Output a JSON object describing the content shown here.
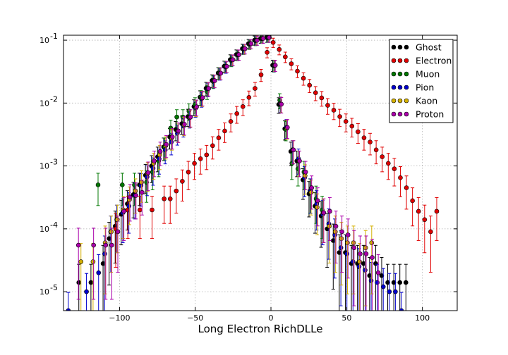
{
  "chart_data": {
    "type": "scatter",
    "title": "",
    "xlabel": "Long Electron RichDLLe",
    "ylabel": "",
    "xlim": [
      -137,
      123
    ],
    "ylim": [
      5e-06,
      0.12
    ],
    "yscale": "log",
    "grid": true,
    "legend_position": "top-right",
    "x_ticks": [
      -100,
      -50,
      0,
      50,
      100
    ],
    "x_tick_labels": [
      "−100",
      "−50",
      "0",
      "50",
      "100"
    ],
    "y_ticks": [
      1e-05,
      0.0001,
      0.001,
      0.01,
      0.1
    ],
    "y_tick_labels": [
      {
        "base": "10",
        "exp": "-5"
      },
      {
        "base": "10",
        "exp": "-4"
      },
      {
        "base": "10",
        "exp": "-3"
      },
      {
        "base": "10",
        "exp": "-2"
      },
      {
        "base": "10",
        "exp": "-1"
      }
    ],
    "series": [
      {
        "name": "Ghost",
        "color": "#000000",
        "x": [
          -126,
          -118,
          -110,
          -106,
          -102,
          -98,
          -94,
          -90,
          -86,
          -82,
          -78,
          -74,
          -70,
          -66,
          -62,
          -58,
          -54,
          -50,
          -46,
          -42,
          -38,
          -34,
          -30,
          -26,
          -22,
          -18,
          -14,
          -10,
          -6,
          -2,
          2,
          6,
          10,
          14,
          18,
          22,
          26,
          30,
          34,
          38,
          42,
          46,
          50,
          54,
          58,
          62,
          66,
          70,
          74,
          78,
          82,
          86,
          90
        ],
        "y": [
          1.4e-05,
          1.4e-05,
          2.8e-05,
          7e-05,
          0.00011,
          0.00017,
          0.00025,
          0.00035,
          0.0005,
          0.00071,
          0.001,
          0.0014,
          0.002,
          0.0029,
          0.0038,
          0.0047,
          0.0061,
          0.0088,
          0.0124,
          0.0172,
          0.0229,
          0.0301,
          0.0385,
          0.0491,
          0.0591,
          0.0735,
          0.0881,
          0.1,
          0.107,
          0.1105,
          0.04,
          0.0095,
          0.0039,
          0.0017,
          0.0012,
          0.0006,
          0.00036,
          0.00023,
          0.00016,
          0.0001,
          6.5e-05,
          4.2e-05,
          4.2e-05,
          2.8e-05,
          2.8e-05,
          2.8e-05,
          1.8e-05,
          2.8e-05,
          1.8e-05,
          1.4e-05,
          1.4e-05,
          1.4e-05,
          1.4e-05
        ]
      },
      {
        "name": "Electron",
        "color": "#e00000",
        "x": [
          -102,
          -94,
          -86,
          -78,
          -70,
          -66,
          -62,
          -58,
          -54,
          -50,
          -46,
          -42,
          -38,
          -34,
          -30,
          -26,
          -22,
          -18,
          -14,
          -10,
          -6,
          -2,
          2,
          6,
          10,
          14,
          18,
          22,
          26,
          30,
          34,
          38,
          42,
          46,
          50,
          54,
          58,
          62,
          66,
          70,
          74,
          78,
          82,
          86,
          90,
          94,
          98,
          102,
          106,
          110
        ],
        "y": [
          0.0001,
          0.0002,
          0.0002,
          0.0002,
          0.0003,
          0.0003,
          0.0004,
          0.00057,
          0.0008,
          0.0011,
          0.0013,
          0.0015,
          0.0021,
          0.0028,
          0.0036,
          0.0051,
          0.0068,
          0.0088,
          0.0123,
          0.0171,
          0.0282,
          0.0641,
          0.0921,
          0.0712,
          0.0543,
          0.0422,
          0.0322,
          0.0248,
          0.0192,
          0.0146,
          0.0121,
          0.0092,
          0.0077,
          0.0061,
          0.0051,
          0.0043,
          0.0035,
          0.0028,
          0.0024,
          0.0018,
          0.0014,
          0.0011,
          0.0009,
          0.00065,
          0.00045,
          0.00028,
          0.00019,
          0.00014,
          9e-05,
          0.00019
        ]
      },
      {
        "name": "Muon",
        "color": "#007700",
        "x": [
          -114,
          -98,
          -90,
          -82,
          -78,
          -74,
          -70,
          -66,
          -62,
          -58,
          -54,
          -50,
          -46,
          -42,
          -38,
          -34,
          -30,
          -26,
          -22,
          -18,
          -14,
          -10,
          -6,
          -2,
          2,
          6,
          10,
          14,
          18,
          22,
          26,
          30,
          34
        ],
        "y": [
          0.0005,
          0.0005,
          0.0005,
          0.00055,
          0.0008,
          0.0012,
          0.002,
          0.004,
          0.006,
          0.006,
          0.0075,
          0.0095,
          0.0125,
          0.0152,
          0.0221,
          0.0301,
          0.0381,
          0.0471,
          0.0581,
          0.0721,
          0.0861,
          0.0981,
          0.1061,
          0.1101,
          0.0391,
          0.0111,
          0.0038,
          0.0011,
          0.0009,
          0.0008,
          0.0004,
          0.0003,
          0.0002
        ]
      },
      {
        "name": "Pion",
        "color": "#0000cc",
        "x": [
          -134,
          -122,
          -114,
          -110,
          -106,
          -102,
          -98,
          -94,
          -90,
          -86,
          -82,
          -78,
          -74,
          -70,
          -66,
          -62,
          -58,
          -54,
          -50,
          -46,
          -42,
          -38,
          -34,
          -30,
          -26,
          -22,
          -18,
          -14,
          -10,
          -6,
          -2,
          2,
          6,
          10,
          14,
          18,
          22,
          26,
          30,
          34,
          38,
          42,
          46,
          50,
          54,
          58,
          62,
          66,
          70,
          74,
          78,
          82,
          86
        ],
        "y": [
          5e-06,
          1e-05,
          2e-05,
          4e-05,
          9e-05,
          0.00014,
          0.00018,
          0.00023,
          0.00034,
          0.00049,
          0.00067,
          0.00092,
          0.0013,
          0.0018,
          0.0024,
          0.0033,
          0.0043,
          0.0058,
          0.0083,
          0.0117,
          0.0167,
          0.0226,
          0.0295,
          0.0375,
          0.0483,
          0.0587,
          0.0728,
          0.0875,
          0.0995,
          0.1065,
          0.1101,
          0.0395,
          0.0098,
          0.0041,
          0.0018,
          0.0013,
          0.00065,
          0.0004,
          0.00025,
          0.00017,
          0.00012,
          8e-05,
          5e-05,
          4e-05,
          3e-05,
          2.5e-05,
          2.2e-05,
          1.5e-05,
          1.4e-05,
          1.2e-05,
          1e-05,
          1e-05,
          5e-06
        ]
      },
      {
        "name": "Kaon",
        "color": "#d4b000",
        "x": [
          -126,
          -118,
          -110,
          -106,
          -102,
          -98,
          -94,
          -90,
          -86,
          -82,
          -78,
          -74,
          -70,
          -66,
          -62,
          -58,
          -54,
          -50,
          -46,
          -42,
          -38,
          -34,
          -30,
          -26,
          -22,
          -18,
          -14,
          -10,
          -6,
          -2,
          2,
          6,
          10,
          14,
          18,
          22,
          26,
          30,
          34,
          38,
          42,
          46,
          50,
          54,
          58,
          62,
          66
        ],
        "y": [
          3e-05,
          3e-05,
          6e-05,
          9e-05,
          0.00014,
          0.0002,
          0.00029,
          0.0004,
          0.00055,
          0.00076,
          0.0011,
          0.0015,
          0.0021,
          0.0028,
          0.0036,
          0.0045,
          0.0059,
          0.0085,
          0.012,
          0.017,
          0.0228,
          0.0298,
          0.0382,
          0.0487,
          0.0589,
          0.0731,
          0.0878,
          0.0998,
          0.1067,
          0.1103,
          0.0398,
          0.0097,
          0.004,
          0.0018,
          0.0012,
          0.0007,
          0.00038,
          0.00022,
          0.00018,
          0.00011,
          9e-05,
          7e-05,
          6e-05,
          6e-05,
          3e-05,
          5e-05,
          6e-05
        ]
      },
      {
        "name": "Proton",
        "color": "#aa00aa",
        "x": [
          -128,
          -118,
          -110,
          -106,
          -102,
          -98,
          -94,
          -90,
          -86,
          -82,
          -78,
          -74,
          -70,
          -66,
          -62,
          -58,
          -54,
          -50,
          -46,
          -42,
          -38,
          -34,
          -30,
          -26,
          -22,
          -18,
          -14,
          -10,
          -6,
          -2,
          2,
          6,
          10,
          14,
          18,
          22,
          26,
          30,
          34,
          38,
          42,
          46,
          50,
          54,
          58,
          62,
          66,
          70
        ],
        "y": [
          5.5e-05,
          5.5e-05,
          5.5e-05,
          5.5e-05,
          9e-05,
          0.00019,
          0.00032,
          0.00034,
          0.00038,
          0.00078,
          0.0012,
          0.0017,
          0.0022,
          0.0029,
          0.0036,
          0.0046,
          0.006,
          0.0087,
          0.0122,
          0.0171,
          0.0227,
          0.0299,
          0.0383,
          0.0489,
          0.059,
          0.0733,
          0.0879,
          0.0996,
          0.1066,
          0.1104,
          0.0399,
          0.0096,
          0.0041,
          0.0018,
          0.0012,
          0.0008,
          0.00045,
          0.00028,
          0.00018,
          0.00019,
          0.00011,
          9e-05,
          8e-05,
          5e-05,
          4e-05,
          4e-05,
          3.5e-05,
          2e-05
        ]
      }
    ]
  }
}
